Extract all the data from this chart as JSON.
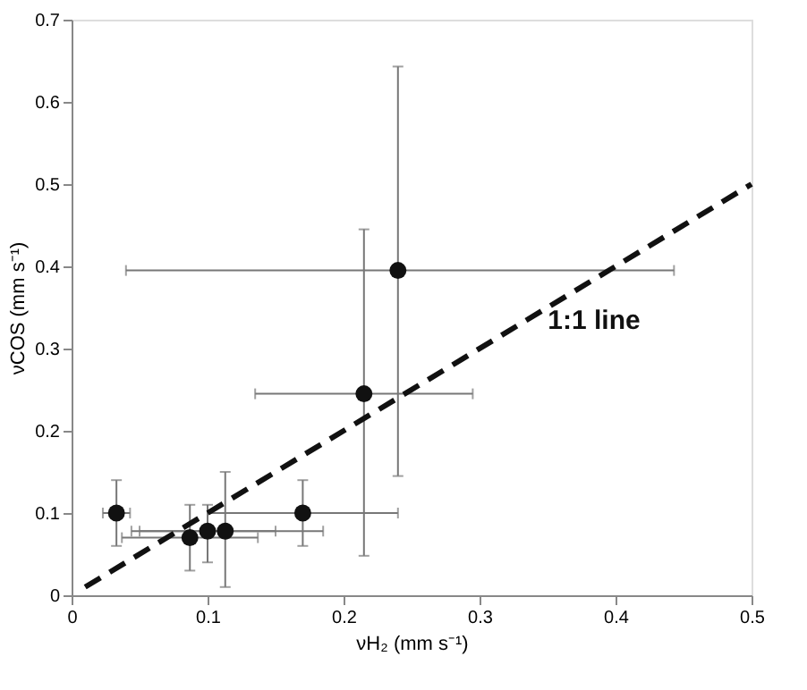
{
  "chart_data": {
    "type": "scatter",
    "xlabel": "νH₂ (mm s⁻¹)",
    "ylabel": "νCOS (mm s⁻¹)",
    "xlim": [
      0,
      0.5
    ],
    "ylim": [
      0,
      0.7
    ],
    "xticks": [
      0,
      0.1,
      0.2,
      0.3,
      0.4,
      0.5
    ],
    "yticks": [
      0,
      0.1,
      0.2,
      0.3,
      0.4,
      0.5,
      0.6,
      0.7
    ],
    "grid": false,
    "series": [
      {
        "color": "#111111",
        "marker": "circle",
        "x": [
          0.033,
          0.087,
          0.1,
          0.113,
          0.17,
          0.215,
          0.24
        ],
        "values": [
          0.1,
          0.07,
          0.078,
          0.078,
          0.1,
          0.245,
          0.395
        ],
        "errors": [
          [
            0.06,
            0.14
          ],
          [
            0.03,
            0.11
          ],
          [
            0.04,
            0.11
          ],
          [
            0.01,
            0.15
          ],
          [
            0.06,
            0.14
          ],
          [
            0.048,
            0.445
          ],
          [
            0.145,
            0.643
          ]
        ],
        "xerrors": [
          [
            0.023,
            0.043
          ],
          [
            0.037,
            0.137
          ],
          [
            0.05,
            0.15
          ],
          [
            0.044,
            0.185
          ],
          [
            0.1,
            0.24
          ],
          [
            0.135,
            0.295
          ],
          [
            0.04,
            0.443
          ]
        ]
      },
      {
        "type": "line",
        "color": "#111111",
        "line_style": "dashed",
        "marker": "none",
        "x": [
          0.01,
          0.5
        ],
        "values": [
          0.01,
          0.5
        ]
      }
    ],
    "annotations": [
      "1:1 line"
    ]
  }
}
